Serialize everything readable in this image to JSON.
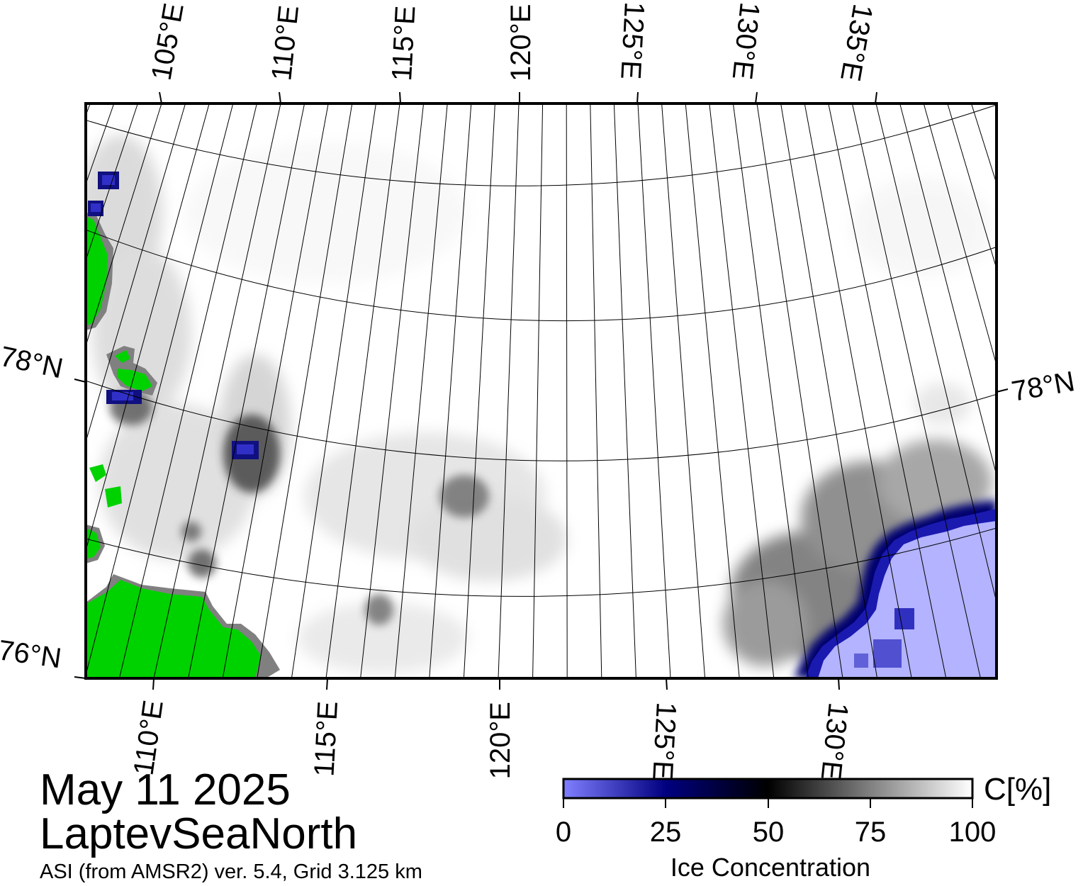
{
  "map": {
    "frame_labels_top": [
      "105°E",
      "110°E",
      "115°E",
      "120°E",
      "125°E",
      "130°E",
      "135°E"
    ],
    "frame_labels_bottom": [
      "110°E",
      "115°E",
      "120°E",
      "125°E",
      "130°E"
    ],
    "frame_labels_left": [
      "78°N",
      "76°N"
    ],
    "frame_labels_right": [
      "78°N"
    ],
    "colors": {
      "land": "#00d200",
      "coast": "#808080",
      "open_water": "#b3b3ff",
      "low_ice": "#1010a0",
      "background": "#ffffff"
    }
  },
  "info": {
    "date": "May 11 2025",
    "region": "LaptevSeaNorth",
    "source": "ASI (from AMSR2) ver. 5.4,  Grid 3.125 km"
  },
  "colorbar": {
    "title": "Ice Concentration",
    "unit": "C[%]",
    "ticks": [
      "0",
      "25",
      "50",
      "75",
      "100"
    ],
    "range": [
      0,
      100
    ],
    "stops": [
      "#8080ff",
      "#000080",
      "#000000",
      "#808080",
      "#ffffff"
    ]
  }
}
